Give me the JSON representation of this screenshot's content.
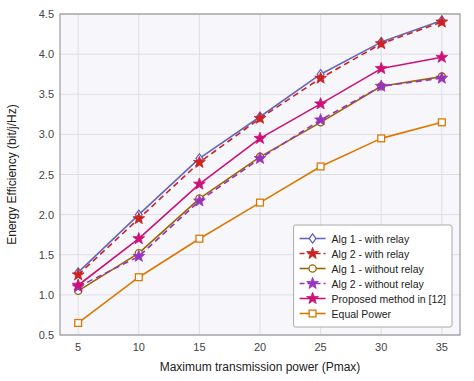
{
  "chart_data": {
    "type": "line",
    "x_label": "Maximum transmission power  (Pmax)",
    "y_label": "Energy Efficiency  (bit/j/Hz)",
    "x": [
      5,
      10,
      15,
      20,
      25,
      30,
      35
    ],
    "series": [
      {
        "name": "Alg 1 - with relay",
        "color": "#6666bb",
        "marker": "diamond",
        "line_style": "solid",
        "values": [
          1.28,
          2.0,
          2.7,
          3.22,
          3.75,
          4.15,
          4.42
        ]
      },
      {
        "name": "Alg 2 -  with relay",
        "color": "#cc2222",
        "marker": "star",
        "line_style": "dashed",
        "values": [
          1.25,
          1.95,
          2.65,
          3.2,
          3.7,
          4.13,
          4.4
        ]
      },
      {
        "name": "Alg 1 - without relay",
        "color": "#996600",
        "marker": "circle",
        "line_style": "solid",
        "values": [
          1.05,
          1.52,
          2.2,
          2.72,
          3.15,
          3.6,
          3.72
        ]
      },
      {
        "name": "Alg 2 - without relay",
        "color": "#9933bb",
        "marker": "star",
        "line_style": "dashed",
        "values": [
          1.1,
          1.48,
          2.17,
          2.7,
          3.18,
          3.6,
          3.7
        ]
      },
      {
        "name": "Proposed method in [12]",
        "color": "#cc1177",
        "marker": "star",
        "line_style": "solid",
        "values": [
          1.12,
          1.7,
          2.38,
          2.95,
          3.38,
          3.82,
          3.96
        ]
      },
      {
        "name": "Equal Power",
        "color": "#dd7700",
        "marker": "square",
        "line_style": "solid",
        "values": [
          0.65,
          1.22,
          1.7,
          2.15,
          2.6,
          2.95,
          3.15
        ]
      }
    ],
    "xlim": [
      3.5,
      36.5
    ],
    "ylim": [
      0.5,
      4.5
    ],
    "xticks": [
      5,
      10,
      15,
      20,
      25,
      30,
      35
    ],
    "yticks": [
      0.5,
      {
        "value": 1.0,
        "label": "1.0"
      },
      1.5,
      {
        "value": 2.0,
        "label": "2.0"
      },
      2.5,
      {
        "value": 3.0,
        "label": "3.0"
      },
      3.5,
      {
        "value": 4.0,
        "label": "4.0"
      },
      4.5
    ],
    "grid": true,
    "legend": "lower right"
  }
}
